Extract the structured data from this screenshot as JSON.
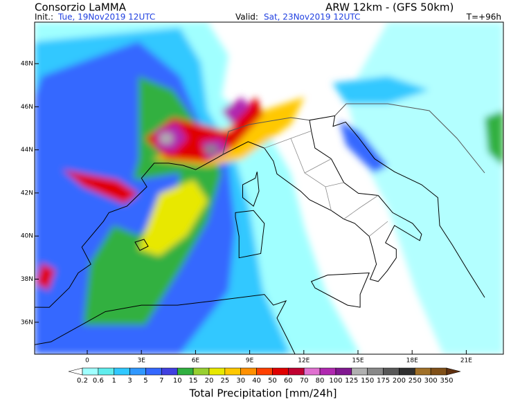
{
  "header": {
    "title": "Consorzio LaMMA",
    "model": "ARW 12km - (GFS 50km)",
    "init_label": "Init.:",
    "init": "Tue, 19Nov2019 12UTC",
    "valid_label": "Valid:",
    "valid": "Sat, 23Nov2019 12UTC",
    "lead": "T=+96h"
  },
  "map": {
    "lon_labels": [
      "0",
      "3E",
      "6E",
      "9E",
      "12E",
      "15E",
      "18E",
      "21E"
    ],
    "lat_labels": [
      "48N",
      "46N",
      "44N",
      "42N",
      "40N",
      "38N",
      "36N"
    ]
  },
  "colorbar": {
    "title": "Total Precipitation [mm/24h]",
    "levels": [
      0.2,
      0.6,
      1,
      3,
      5,
      7,
      10,
      15,
      20,
      25,
      30,
      40,
      50,
      60,
      70,
      80,
      100,
      125,
      150,
      175,
      200,
      250,
      300,
      350
    ],
    "colors": [
      "#ffffff",
      "#a0ffff",
      "#60eeee",
      "#30c8ff",
      "#3098ff",
      "#3468ff",
      "#4040e0",
      "#30b040",
      "#98d030",
      "#e8e800",
      "#ffc800",
      "#ff9000",
      "#ff4000",
      "#e00000",
      "#c00030",
      "#e070d0",
      "#b028b0",
      "#801890",
      "#b0b0b0",
      "#888888",
      "#585858",
      "#303030",
      "#a07028",
      "#805018",
      "#603010"
    ]
  }
}
